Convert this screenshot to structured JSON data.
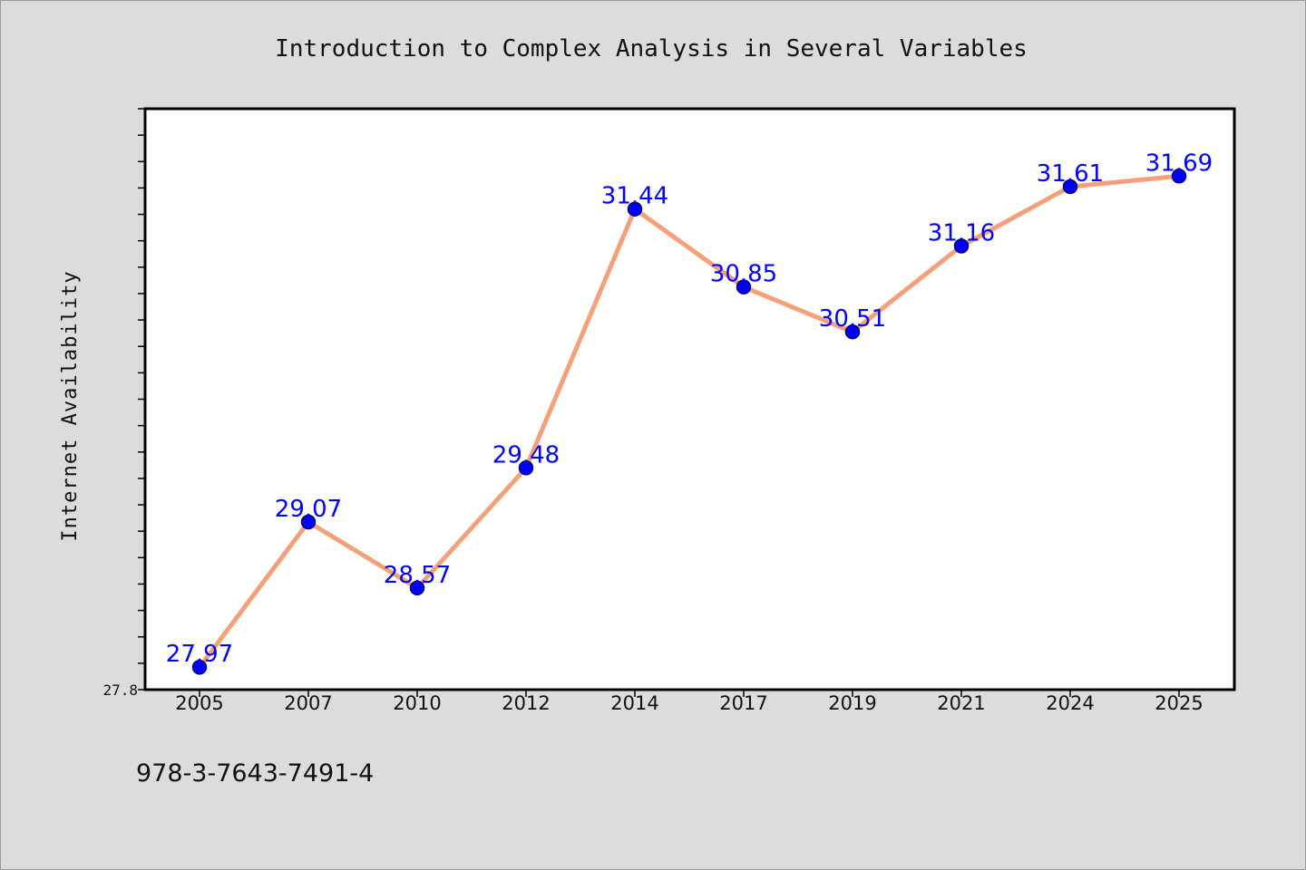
{
  "chart_data": {
    "type": "line",
    "title": "Introduction to Complex Analysis in Several Variables",
    "xlabel": "",
    "ylabel": "Internet Availability",
    "categories": [
      "2005",
      "2007",
      "2010",
      "2012",
      "2014",
      "2017",
      "2019",
      "2021",
      "2024",
      "2025"
    ],
    "series": [
      {
        "values": [
          27.97,
          29.07,
          28.57,
          29.48,
          31.44,
          30.85,
          30.51,
          31.16,
          31.61,
          31.69
        ]
      }
    ],
    "data_labels": [
      "27.97",
      "29.07",
      "28.57",
      "29.48",
      "31.44",
      "30.85",
      "30.51",
      "31.16",
      "31.61",
      "31.69"
    ],
    "ylim": [
      27.8,
      32.2
    ],
    "yticks_labeled": [
      "27.8"
    ],
    "grid": false,
    "legend": "none",
    "colors": {
      "line": "#f4a07a",
      "marker": "#0000ff",
      "marker_edge": "#000066",
      "data_label": "#0000ff",
      "plot_background": "#ffffff",
      "figure_background": "#dcdcdc"
    }
  },
  "footer_text": "978-3-7643-7491-4"
}
